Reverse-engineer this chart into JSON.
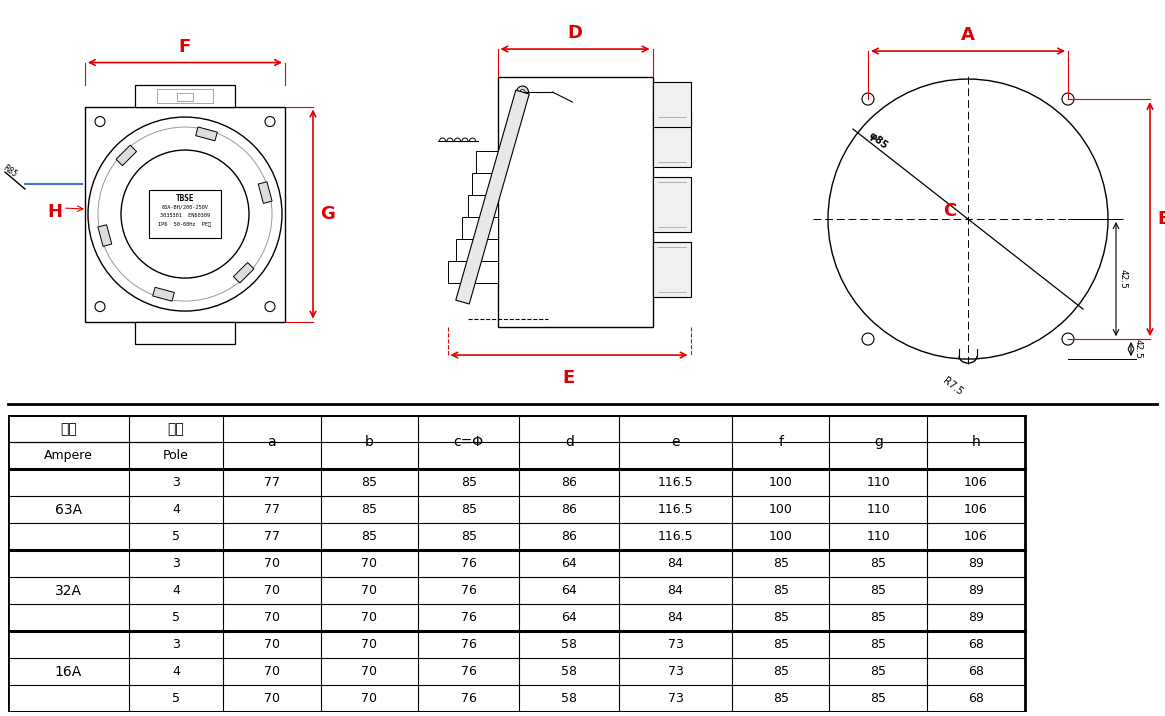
{
  "bg_color": "#ffffff",
  "red_color": "#e00000",
  "blue_color": "#4472c4",
  "black": "#000000",
  "gray": "#aaaaaa",
  "table_data": [
    [
      "63A",
      "3",
      "77",
      "85",
      "85",
      "86",
      "116.5",
      "100",
      "110",
      "106"
    ],
    [
      "63A",
      "4",
      "77",
      "85",
      "85",
      "86",
      "116.5",
      "100",
      "110",
      "106"
    ],
    [
      "63A",
      "5",
      "77",
      "85",
      "85",
      "86",
      "116.5",
      "100",
      "110",
      "106"
    ],
    [
      "32A",
      "3",
      "70",
      "70",
      "76",
      "64",
      "84",
      "85",
      "85",
      "89"
    ],
    [
      "32A",
      "4",
      "70",
      "70",
      "76",
      "64",
      "84",
      "85",
      "85",
      "89"
    ],
    [
      "32A",
      "5",
      "70",
      "70",
      "76",
      "64",
      "84",
      "85",
      "85",
      "89"
    ],
    [
      "16A",
      "3",
      "70",
      "70",
      "76",
      "58",
      "73",
      "85",
      "85",
      "68"
    ],
    [
      "16A",
      "4",
      "70",
      "70",
      "76",
      "58",
      "73",
      "85",
      "85",
      "68"
    ],
    [
      "16A",
      "5",
      "70",
      "70",
      "76",
      "58",
      "73",
      "85",
      "85",
      "68"
    ]
  ],
  "tbse_label": [
    "TBSE",
    "63A-BH/200-250V",
    "3035301  EN60309",
    "IP6  50-60Hz  PE标"
  ]
}
